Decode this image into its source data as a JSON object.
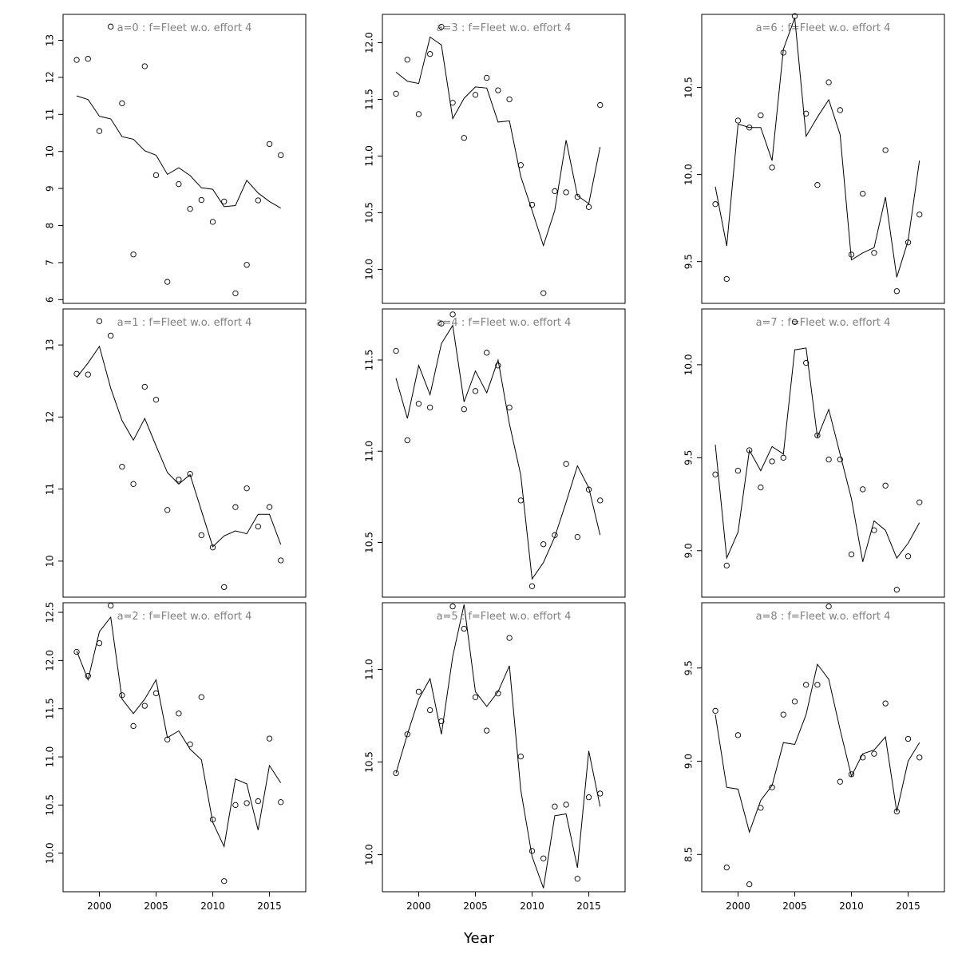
{
  "figure": {
    "xlabel": "Year",
    "title_template_sep": "  :  ",
    "colors": {
      "title": "#808080",
      "line": "#000000",
      "point": "#000000",
      "background": "#ffffff"
    }
  },
  "chart_data": [
    {
      "type": "scatter+line",
      "title": "a=0  :  f=Fleet w.o. effort 4",
      "x": [
        1998,
        1999,
        2000,
        2001,
        2002,
        2003,
        2004,
        2005,
        2006,
        2007,
        2008,
        2009,
        2010,
        2011,
        2012,
        2013,
        2014,
        2015,
        2016
      ],
      "fitted": [
        11.5,
        11.4,
        10.95,
        10.88,
        10.4,
        10.33,
        10.02,
        9.9,
        9.38,
        9.56,
        9.35,
        9.02,
        8.98,
        8.51,
        8.54,
        9.22,
        8.88,
        8.65,
        8.47
      ],
      "observed": [
        12.47,
        12.5,
        10.55,
        13.37,
        11.3,
        7.22,
        12.3,
        9.36,
        6.48,
        9.12,
        8.45,
        8.69,
        8.1,
        8.65,
        6.17,
        6.94,
        8.68,
        10.2,
        9.9
      ],
      "ylim": [
        5.9,
        13.7
      ],
      "yticks": [
        6,
        7,
        8,
        9,
        10,
        11,
        12,
        13
      ],
      "xticks": [
        2000,
        2005,
        2010,
        2015
      ],
      "show_xaxis": false
    },
    {
      "type": "scatter+line",
      "title": "a=1  :  f=Fleet w.o. effort 4",
      "x": [
        1998,
        1999,
        2000,
        2001,
        2002,
        2003,
        2004,
        2005,
        2006,
        2007,
        2008,
        2009,
        2010,
        2011,
        2012,
        2013,
        2014,
        2015,
        2016
      ],
      "fitted": [
        12.55,
        12.75,
        12.98,
        12.4,
        11.95,
        11.68,
        11.98,
        11.6,
        11.23,
        11.07,
        11.2,
        10.7,
        10.2,
        10.35,
        10.42,
        10.38,
        10.65,
        10.65,
        10.23
      ],
      "observed": [
        12.6,
        12.59,
        13.33,
        13.13,
        11.31,
        11.07,
        12.42,
        12.24,
        10.71,
        11.13,
        11.21,
        10.36,
        10.19,
        9.64,
        10.75,
        11.01,
        10.48,
        10.75,
        10.01
      ],
      "ylim": [
        9.5,
        13.5
      ],
      "yticks": [
        10,
        11,
        12,
        13
      ],
      "xticks": [
        2000,
        2005,
        2010,
        2015
      ],
      "show_xaxis": false
    },
    {
      "type": "scatter+line",
      "title": "a=2  :  f=Fleet w.o. effort 4",
      "x": [
        1998,
        1999,
        2000,
        2001,
        2002,
        2003,
        2004,
        2005,
        2006,
        2007,
        2008,
        2009,
        2010,
        2011,
        2012,
        2013,
        2014,
        2015,
        2016
      ],
      "fitted": [
        12.1,
        11.8,
        12.3,
        12.45,
        11.6,
        11.45,
        11.6,
        11.8,
        11.2,
        11.27,
        11.08,
        10.97,
        10.32,
        10.07,
        10.77,
        10.72,
        10.24,
        10.91,
        10.73
      ],
      "observed": [
        12.09,
        11.84,
        12.18,
        12.57,
        11.64,
        11.32,
        11.53,
        11.66,
        11.18,
        11.45,
        11.13,
        11.62,
        10.35,
        9.71,
        10.5,
        10.52,
        10.54,
        11.19,
        10.53
      ],
      "ylim": [
        9.6,
        12.6
      ],
      "yticks": [
        10.0,
        10.5,
        11.0,
        11.5,
        12.0,
        12.5
      ],
      "xticks": [
        2000,
        2005,
        2010,
        2015
      ],
      "show_xaxis": true
    },
    {
      "type": "scatter+line",
      "title": "a=3  :  f=Fleet w.o. effort 4",
      "x": [
        1998,
        1999,
        2000,
        2001,
        2002,
        2003,
        2004,
        2005,
        2006,
        2007,
        2008,
        2009,
        2010,
        2011,
        2012,
        2013,
        2014,
        2015,
        2016
      ],
      "fitted": [
        11.74,
        11.66,
        11.64,
        12.05,
        11.98,
        11.33,
        11.51,
        11.61,
        11.6,
        11.3,
        11.31,
        10.82,
        10.52,
        10.21,
        10.52,
        11.14,
        10.65,
        10.58,
        11.08
      ],
      "observed": [
        11.55,
        11.85,
        11.37,
        11.9,
        12.14,
        11.47,
        11.16,
        11.54,
        11.69,
        11.58,
        11.5,
        10.92,
        10.57,
        9.79,
        10.69,
        10.68,
        10.64,
        10.55,
        11.45
      ],
      "ylim": [
        9.7,
        12.25
      ],
      "yticks": [
        10.0,
        10.5,
        11.0,
        11.5,
        12.0
      ],
      "xticks": [
        2000,
        2005,
        2010,
        2015
      ],
      "show_xaxis": false
    },
    {
      "type": "scatter+line",
      "title": "a=4  :  f=Fleet w.o. effort 4",
      "x": [
        1998,
        1999,
        2000,
        2001,
        2002,
        2003,
        2004,
        2005,
        2006,
        2007,
        2008,
        2009,
        2010,
        2011,
        2012,
        2013,
        2014,
        2015,
        2016
      ],
      "fitted": [
        11.4,
        11.18,
        11.47,
        11.31,
        11.59,
        11.69,
        11.27,
        11.44,
        11.32,
        11.5,
        11.15,
        10.87,
        10.3,
        10.39,
        10.53,
        10.72,
        10.92,
        10.8,
        10.54
      ],
      "observed": [
        11.55,
        11.06,
        11.26,
        11.24,
        11.7,
        11.75,
        11.23,
        11.33,
        11.54,
        11.47,
        11.24,
        10.73,
        10.26,
        10.49,
        10.54,
        10.93,
        10.53,
        10.79,
        10.73
      ],
      "ylim": [
        10.2,
        11.78
      ],
      "yticks": [
        10.5,
        11.0,
        11.5
      ],
      "xticks": [
        2000,
        2005,
        2010,
        2015
      ],
      "show_xaxis": false
    },
    {
      "type": "scatter+line",
      "title": "a=5  :  f=Fleet w.o. effort 4",
      "x": [
        1998,
        1999,
        2000,
        2001,
        2002,
        2003,
        2004,
        2005,
        2006,
        2007,
        2008,
        2009,
        2010,
        2011,
        2012,
        2013,
        2014,
        2015,
        2016
      ],
      "fitted": [
        10.44,
        10.65,
        10.84,
        10.95,
        10.65,
        11.07,
        11.35,
        10.88,
        10.8,
        10.88,
        11.02,
        10.35,
        9.99,
        9.82,
        10.21,
        10.22,
        9.93,
        10.56,
        10.26
      ],
      "observed": [
        10.44,
        10.65,
        10.88,
        10.78,
        10.72,
        11.34,
        11.22,
        10.85,
        10.67,
        10.87,
        11.17,
        10.53,
        10.02,
        9.98,
        10.26,
        10.27,
        9.87,
        10.31,
        10.33
      ],
      "ylim": [
        9.8,
        11.36
      ],
      "yticks": [
        10.0,
        10.5,
        11.0
      ],
      "xticks": [
        2000,
        2005,
        2010,
        2015
      ],
      "show_xaxis": true
    },
    {
      "type": "scatter+line",
      "title": "a=6  :  f=Fleet w.o. effort 4",
      "x": [
        1998,
        1999,
        2000,
        2001,
        2002,
        2003,
        2004,
        2005,
        2006,
        2007,
        2008,
        2009,
        2010,
        2011,
        2012,
        2013,
        2014,
        2015,
        2016
      ],
      "fitted": [
        9.93,
        9.59,
        10.29,
        10.27,
        10.27,
        10.08,
        10.72,
        10.9,
        10.22,
        10.33,
        10.43,
        10.23,
        9.51,
        9.55,
        9.58,
        9.87,
        9.41,
        9.62,
        10.08
      ],
      "observed": [
        9.83,
        9.4,
        10.31,
        10.27,
        10.34,
        10.04,
        10.7,
        10.91,
        10.35,
        9.94,
        10.53,
        10.37,
        9.54,
        9.89,
        9.55,
        10.14,
        9.33,
        9.61,
        9.77
      ],
      "ylim": [
        9.26,
        10.92
      ],
      "yticks": [
        9.5,
        10.0,
        10.5
      ],
      "xticks": [
        2000,
        2005,
        2010,
        2015
      ],
      "show_xaxis": false
    },
    {
      "type": "scatter+line",
      "title": "a=7  :  f=Fleet w.o. effort 4",
      "x": [
        1998,
        1999,
        2000,
        2001,
        2002,
        2003,
        2004,
        2005,
        2006,
        2007,
        2008,
        2009,
        2010,
        2011,
        2012,
        2013,
        2014,
        2015,
        2016
      ],
      "fitted": [
        9.57,
        8.96,
        9.1,
        9.54,
        9.43,
        9.56,
        9.52,
        10.08,
        10.09,
        9.61,
        9.76,
        9.52,
        9.28,
        8.94,
        9.16,
        9.11,
        8.96,
        9.04,
        9.15
      ],
      "observed": [
        9.41,
        8.92,
        9.43,
        9.54,
        9.34,
        9.48,
        9.5,
        10.23,
        10.01,
        9.62,
        9.49,
        9.49,
        8.98,
        9.33,
        9.11,
        9.35,
        8.79,
        8.97,
        9.26
      ],
      "ylim": [
        8.75,
        10.3
      ],
      "yticks": [
        9.0,
        9.5,
        10.0
      ],
      "xticks": [
        2000,
        2005,
        2010,
        2015
      ],
      "show_xaxis": false
    },
    {
      "type": "scatter+line",
      "title": "a=8  :  f=Fleet w.o. effort 4",
      "x": [
        1998,
        1999,
        2000,
        2001,
        2002,
        2003,
        2004,
        2005,
        2006,
        2007,
        2008,
        2009,
        2010,
        2011,
        2012,
        2013,
        2014,
        2015,
        2016
      ],
      "fitted": [
        9.25,
        8.86,
        8.85,
        8.62,
        8.79,
        8.87,
        9.1,
        9.09,
        9.25,
        9.52,
        9.44,
        9.17,
        8.92,
        9.04,
        9.06,
        9.13,
        8.73,
        9.0,
        9.1
      ],
      "observed": [
        9.27,
        8.43,
        9.14,
        8.34,
        8.75,
        8.86,
        9.25,
        9.32,
        9.41,
        9.41,
        9.83,
        8.89,
        8.93,
        9.02,
        9.04,
        9.31,
        8.73,
        9.12,
        9.02
      ],
      "ylim": [
        8.3,
        9.85
      ],
      "yticks": [
        8.5,
        9.0,
        9.5
      ],
      "xticks": [
        2000,
        2005,
        2010,
        2015
      ],
      "show_xaxis": true
    }
  ]
}
